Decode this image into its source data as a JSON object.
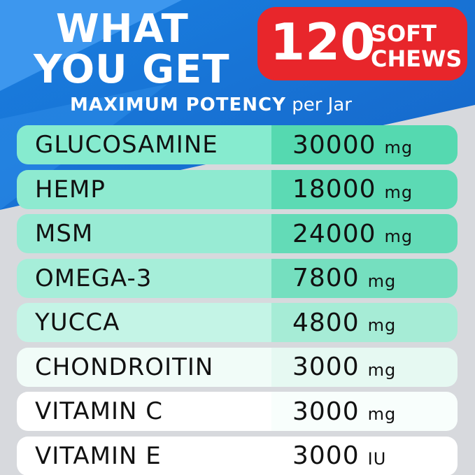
{
  "header": {
    "title_line1": "WHAT",
    "title_line2": "YOU GET",
    "badge_number": "120",
    "badge_word1": "SOFT",
    "badge_word2": "CHEWS",
    "subtitle_bold": "MAXIMUM POTENCY",
    "subtitle_rest": "per Jar"
  },
  "table": {
    "rows": [
      {
        "name": "GLUCOSAMINE",
        "amount": 30000,
        "unit": "mg"
      },
      {
        "name": "HEMP",
        "amount": 18000,
        "unit": "mg"
      },
      {
        "name": "MSM",
        "amount": 24000,
        "unit": "mg"
      },
      {
        "name": "OMEGA-3",
        "amount": 7800,
        "unit": "mg"
      },
      {
        "name": "YUCCA",
        "amount": 4800,
        "unit": "mg"
      },
      {
        "name": "CHONDROITIN",
        "amount": 3000,
        "unit": "mg"
      },
      {
        "name": "VITAMIN C",
        "amount": 3000,
        "unit": "mg"
      },
      {
        "name": "VITAMIN E",
        "amount": 3000,
        "unit": "IU"
      }
    ]
  }
}
